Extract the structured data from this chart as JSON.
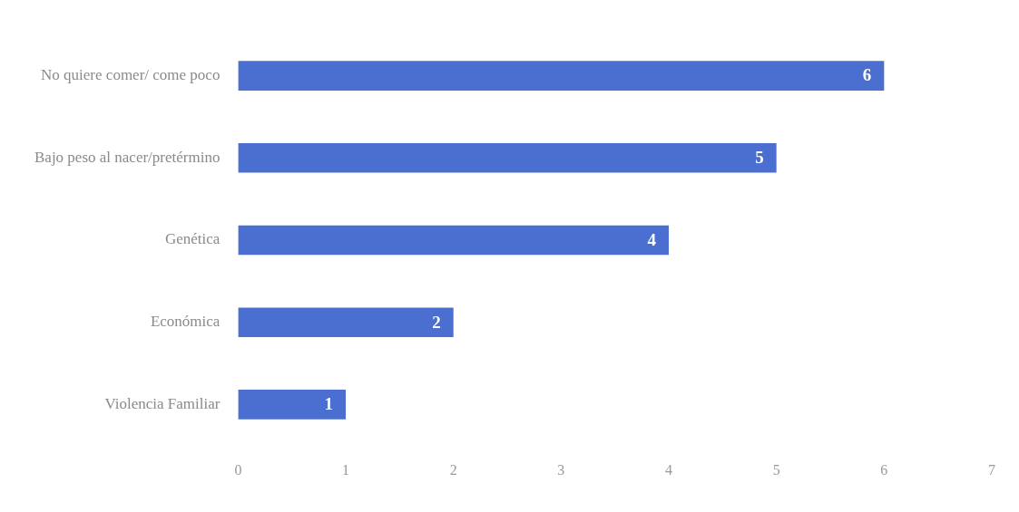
{
  "chart_data": {
    "type": "bar",
    "orientation": "horizontal",
    "categories": [
      "No quiere comer/ come poco",
      "Bajo peso al nacer/pretérmino",
      "Genética",
      "Económica",
      "Violencia Familiar"
    ],
    "values": [
      6,
      5,
      4,
      2,
      1
    ],
    "color": "#4a6fd0",
    "xlim": [
      0,
      7
    ],
    "xticks": [
      0,
      1,
      2,
      3,
      4,
      5,
      6,
      7
    ],
    "grid": false,
    "data_labels": true,
    "legend": false
  }
}
